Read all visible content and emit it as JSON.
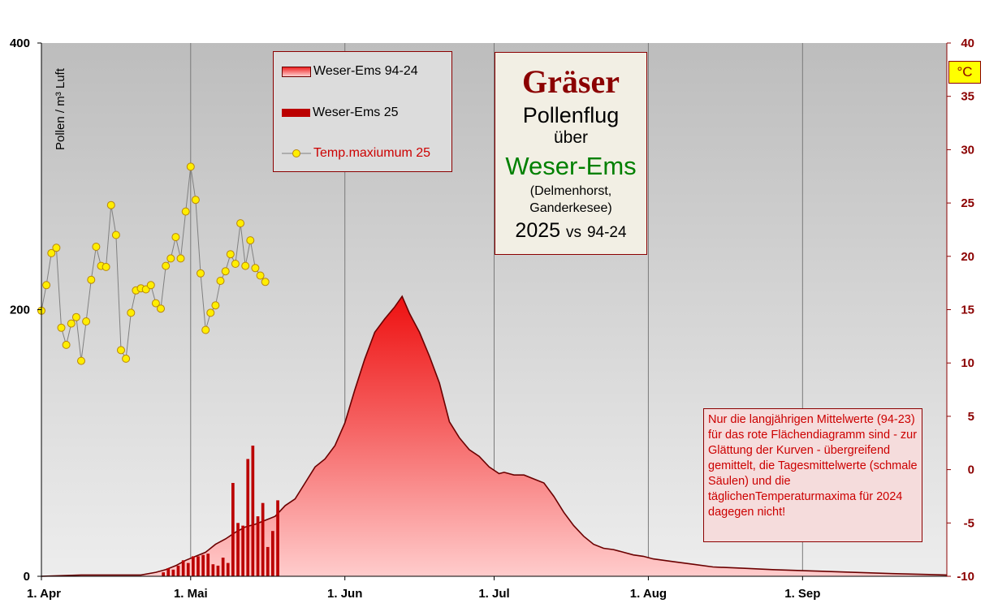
{
  "legend": {
    "area_label": "Weser-Ems 94-24",
    "bar_label": "Weser-Ems 25",
    "temp_label": "Temp.maxiumum 25"
  },
  "title_box": {
    "main": "Gräser",
    "line1": "Pollenflug",
    "line2": "über",
    "region": "Weser-Ems",
    "location": "(Delmenhorst, Ganderkesee)",
    "year": "2025",
    "vs": "vs",
    "compare": "94-24"
  },
  "unit_label": "°C",
  "note": "Nur die langjährigen  Mittelwerte (94-23) für das rote Flächendiagramm  sind - zur Glättung  der Kurven - übergreifend gemittelt,  die Tagesmittelwerte (schmale Säulen) und die täglichenTemperaturmaxima  für 2024 dagegen nicht!",
  "colors": {
    "plot_bg_top": "#bdbdbd",
    "plot_bg_bottom": "#ededed",
    "area_top": "#ee1111",
    "area_bottom": "#ffcccc",
    "area_line": "#6b0000",
    "bar": "#bb0000",
    "temp_marker": "#ffee00",
    "temp_line": "#808080",
    "right_axis": "#8b0000"
  },
  "chart_data": {
    "type": "bar",
    "ylabel": "Pollen / m³ Luft",
    "ylim": [
      0,
      400
    ],
    "yticks": [
      "0",
      "200",
      "400"
    ],
    "y2lim": [
      -10,
      40
    ],
    "y2ticks": [
      "-10",
      "-5",
      "0",
      "5",
      "10",
      "15",
      "20",
      "25",
      "30",
      "35",
      "40"
    ],
    "xlim": [
      0,
      182
    ],
    "xtick_labels": [
      "1. Apr",
      "1. Mai",
      "1. Jun",
      "1. Jul",
      "1. Aug",
      "1. Sep"
    ],
    "xtick_days": [
      0,
      30,
      61,
      91,
      122,
      153
    ],
    "grid": "vertical",
    "legend_position": "top-left",
    "series": [
      {
        "name": "Weser-Ems 94-24",
        "kind": "area",
        "axis": "left",
        "points": [
          [
            0,
            0
          ],
          [
            8,
            1
          ],
          [
            15,
            1
          ],
          [
            20,
            1
          ],
          [
            23,
            3
          ],
          [
            25,
            5
          ],
          [
            27,
            8
          ],
          [
            29,
            12
          ],
          [
            31,
            15
          ],
          [
            33,
            18
          ],
          [
            35,
            24
          ],
          [
            37,
            28
          ],
          [
            39,
            33
          ],
          [
            41,
            37
          ],
          [
            43,
            39
          ],
          [
            45,
            42
          ],
          [
            47,
            45
          ],
          [
            49,
            53
          ],
          [
            51,
            58
          ],
          [
            53,
            70
          ],
          [
            55,
            82
          ],
          [
            57,
            88
          ],
          [
            59,
            98
          ],
          [
            61,
            115
          ],
          [
            63,
            140
          ],
          [
            65,
            163
          ],
          [
            67,
            183
          ],
          [
            69,
            193
          ],
          [
            71,
            202
          ],
          [
            72.5,
            210
          ],
          [
            74,
            197
          ],
          [
            76,
            183
          ],
          [
            78,
            165
          ],
          [
            80,
            145
          ],
          [
            82,
            116
          ],
          [
            84,
            104
          ],
          [
            86,
            95
          ],
          [
            88,
            90
          ],
          [
            90,
            82
          ],
          [
            92,
            77
          ],
          [
            93,
            78
          ],
          [
            95,
            76
          ],
          [
            97,
            76
          ],
          [
            99,
            73
          ],
          [
            101,
            70
          ],
          [
            103,
            60
          ],
          [
            105,
            48
          ],
          [
            107,
            38
          ],
          [
            109,
            30
          ],
          [
            111,
            24
          ],
          [
            113,
            21
          ],
          [
            115,
            20
          ],
          [
            117,
            18
          ],
          [
            119,
            16
          ],
          [
            121,
            15
          ],
          [
            123,
            13
          ],
          [
            127,
            11
          ],
          [
            131,
            9
          ],
          [
            135,
            7
          ],
          [
            141,
            6
          ],
          [
            147,
            5
          ],
          [
            155,
            4
          ],
          [
            163,
            3
          ],
          [
            171,
            2
          ],
          [
            182,
            1
          ]
        ]
      },
      {
        "name": "Weser-Ems 25",
        "kind": "bar",
        "axis": "left",
        "start_day": 24,
        "values": [
          3,
          6,
          5,
          8,
          12,
          10,
          15,
          15,
          16,
          17,
          9,
          8,
          14,
          10,
          70,
          40,
          38,
          88,
          98,
          45,
          55,
          22,
          34,
          57
        ]
      },
      {
        "name": "Temp.maxiumum 25",
        "kind": "line",
        "axis": "right",
        "start_day": 0,
        "values": [
          14.9,
          17.3,
          20.3,
          20.8,
          13.3,
          11.7,
          13.7,
          14.3,
          10.2,
          13.9,
          17.8,
          20.9,
          19.1,
          19.0,
          24.8,
          22.0,
          11.2,
          10.4,
          14.7,
          16.8,
          17.0,
          16.9,
          17.3,
          15.6,
          15.1,
          19.1,
          19.8,
          21.8,
          19.8,
          24.2,
          28.4,
          25.3,
          18.4,
          13.1,
          14.7,
          15.4,
          17.7,
          18.6,
          20.2,
          19.3,
          23.1,
          19.1,
          21.5,
          18.9,
          18.2,
          17.6
        ]
      }
    ]
  }
}
